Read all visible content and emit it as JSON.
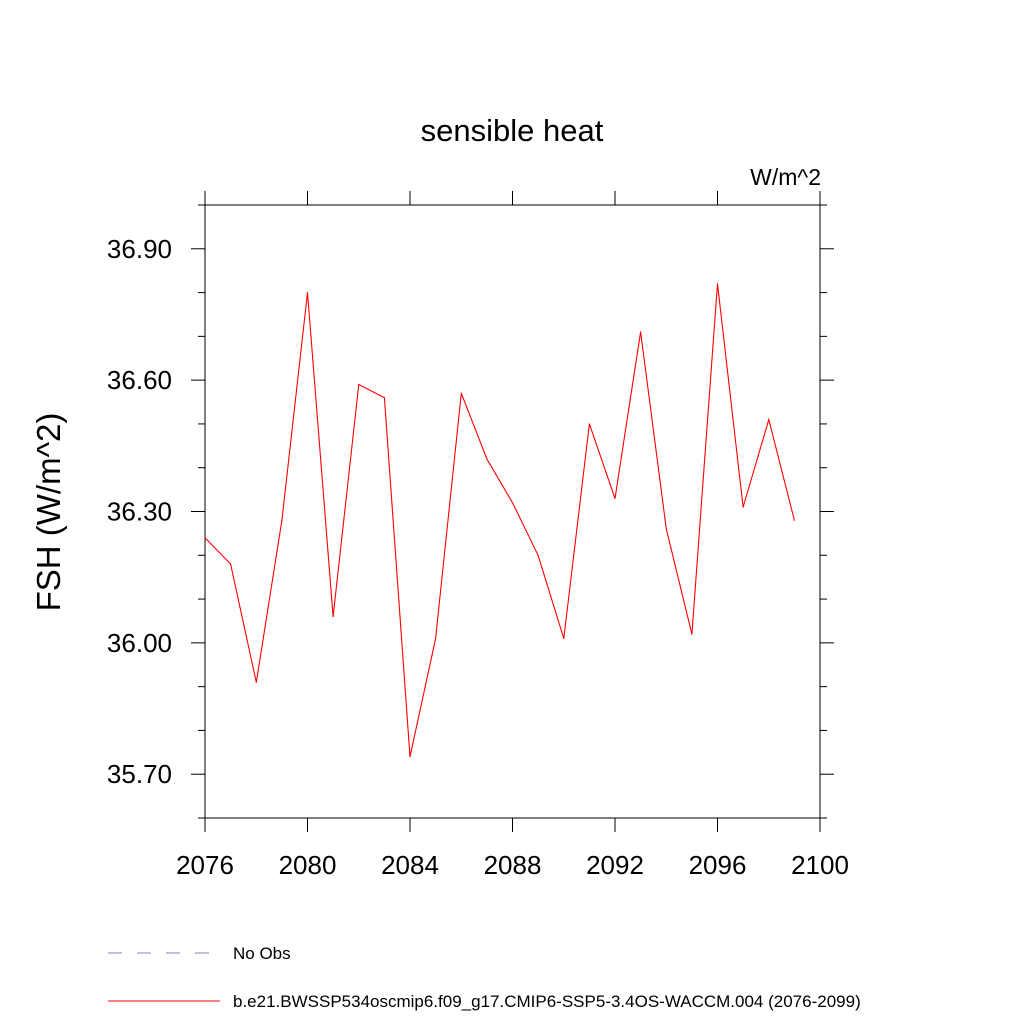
{
  "chart_data": {
    "type": "line",
    "title": "sensible heat",
    "units_label": "W/m^2",
    "ylabel": "FSH  (W/m^2)",
    "xlabel": "",
    "xlim": [
      2076,
      2100
    ],
    "ylim": [
      35.6,
      37.0
    ],
    "x_ticks": [
      2076,
      2080,
      2084,
      2088,
      2092,
      2096,
      2100
    ],
    "x_tick_labels": [
      "2076",
      "2080",
      "2084",
      "2088",
      "2092",
      "2096",
      "2100"
    ],
    "y_ticks": [
      35.7,
      36.0,
      36.3,
      36.6,
      36.9
    ],
    "y_tick_labels": [
      "35.70",
      "36.00",
      "36.30",
      "36.60",
      "36.90"
    ],
    "grid": false,
    "legend_position": "bottom",
    "series": [
      {
        "name": "b.e21.BWSSP534oscmip6.f09_g17.CMIP6-SSP5-3.4OS-WACCM.004 (2076-2099)",
        "color": "#ff0000",
        "style": "solid",
        "x": [
          2076,
          2077,
          2078,
          2079,
          2080,
          2081,
          2082,
          2083,
          2084,
          2085,
          2086,
          2087,
          2088,
          2089,
          2090,
          2091,
          2092,
          2093,
          2094,
          2095,
          2096,
          2097,
          2098,
          2099
        ],
        "y": [
          36.24,
          36.18,
          35.91,
          36.28,
          36.8,
          36.06,
          36.59,
          36.56,
          35.74,
          36.01,
          36.57,
          36.42,
          36.32,
          36.2,
          36.01,
          36.5,
          36.33,
          36.71,
          36.26,
          36.02,
          36.82,
          36.31,
          36.51,
          36.28
        ]
      }
    ],
    "legend": [
      {
        "label": "No Obs",
        "color": "#7f7fbf",
        "style": "dashed"
      },
      {
        "label": "b.e21.BWSSP534oscmip6.f09_g17.CMIP6-SSP5-3.4OS-WACCM.004 (2076-2099)",
        "color": "#ff0000",
        "style": "solid"
      }
    ]
  }
}
